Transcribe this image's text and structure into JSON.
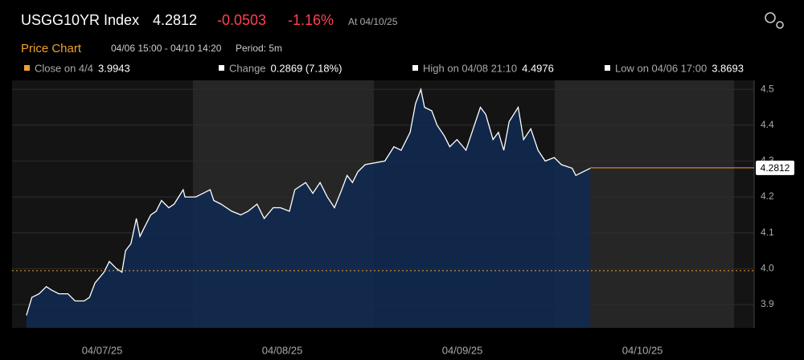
{
  "header": {
    "ticker": "USGG10YR Index",
    "last": "4.2812",
    "change": "-0.0503",
    "change_pct": "-1.16%",
    "as_of": "At 04/10/25"
  },
  "chart_data": {
    "type": "line",
    "title": "Price Chart",
    "subtitle": "04/06 15:00 - 04/10 14:20",
    "period": "Period: 5m",
    "stats": [
      {
        "label": "Close on 4/4",
        "value": 3.9943,
        "color": "#f0a030"
      },
      {
        "label": "Change",
        "value": "0.2869 (7.18%)",
        "color": "#ffffff"
      },
      {
        "label": "High on 04/08 21:10",
        "value": 4.4976,
        "color": "#ffffff"
      },
      {
        "label": "Low on 04/06 17:00",
        "value": 3.8693,
        "color": "#ffffff"
      }
    ],
    "x": [
      6.58,
      6.61,
      6.65,
      6.69,
      6.72,
      6.76,
      6.81,
      6.85,
      6.9,
      6.93,
      6.96,
      7.01,
      7.04,
      7.08,
      7.11,
      7.13,
      7.16,
      7.19,
      7.21,
      7.23,
      7.27,
      7.3,
      7.33,
      7.37,
      7.4,
      7.45,
      7.46,
      7.52,
      7.6,
      7.62,
      7.66,
      7.72,
      7.77,
      7.81,
      7.86,
      7.9,
      7.95,
      7.99,
      8.04,
      8.07,
      8.13,
      8.17,
      8.21,
      8.25,
      8.29,
      8.33,
      8.36,
      8.39,
      8.42,
      8.46,
      8.57,
      8.62,
      8.66,
      8.71,
      8.74,
      8.77,
      8.79,
      8.83,
      8.86,
      8.9,
      8.93,
      8.97,
      9.02,
      9.06,
      9.1,
      9.13,
      9.17,
      9.2,
      9.23,
      9.26,
      9.31,
      9.34,
      9.38,
      9.42,
      9.46,
      9.51,
      9.55,
      9.61,
      9.63,
      9.67,
      9.71
    ],
    "values": [
      3.87,
      3.92,
      3.93,
      3.95,
      3.94,
      3.93,
      3.93,
      3.91,
      3.91,
      3.92,
      3.96,
      3.99,
      4.02,
      4.0,
      3.99,
      4.05,
      4.07,
      4.14,
      4.09,
      4.11,
      4.15,
      4.16,
      4.19,
      4.17,
      4.18,
      4.22,
      4.2,
      4.2,
      4.22,
      4.19,
      4.18,
      4.16,
      4.15,
      4.16,
      4.18,
      4.14,
      4.17,
      4.17,
      4.16,
      4.22,
      4.24,
      4.21,
      4.24,
      4.2,
      4.17,
      4.22,
      4.26,
      4.24,
      4.27,
      4.29,
      4.3,
      4.34,
      4.33,
      4.38,
      4.46,
      4.5,
      4.45,
      4.44,
      4.4,
      4.37,
      4.34,
      4.36,
      4.33,
      4.39,
      4.45,
      4.43,
      4.36,
      4.38,
      4.33,
      4.41,
      4.45,
      4.36,
      4.39,
      4.33,
      4.3,
      4.31,
      4.29,
      4.28,
      4.26,
      4.27,
      4.28
    ],
    "last_value": 4.2812,
    "line_color": "#ffffff",
    "fill_color": "#102a52",
    "xlim": [
      6.5,
      10.62
    ],
    "ylim": [
      3.835,
      4.525
    ],
    "xticks": [
      {
        "value": 7,
        "label": "04/07/25"
      },
      {
        "value": 8,
        "label": "04/08/25"
      },
      {
        "value": 9,
        "label": "04/09/25"
      },
      {
        "value": 10,
        "label": "04/10/25"
      }
    ],
    "yticks": [
      3.9,
      {
        "value": 4,
        "label": "4.0"
      },
      4.1,
      4.2,
      4.3,
      4.4,
      4.5
    ],
    "grid": true
  }
}
